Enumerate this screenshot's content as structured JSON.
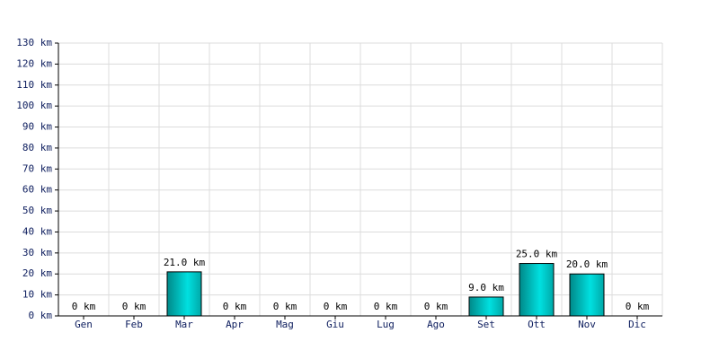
{
  "chart_data": {
    "type": "bar",
    "categories": [
      "Gen",
      "Feb",
      "Mar",
      "Apr",
      "Mag",
      "Giu",
      "Lug",
      "Ago",
      "Set",
      "Ott",
      "Nov",
      "Dic"
    ],
    "values": [
      0,
      0,
      21,
      0,
      0,
      0,
      0,
      0,
      9,
      25,
      20,
      0
    ],
    "value_labels": [
      "0 km",
      "0 km",
      "21.0 km",
      "0 km",
      "0 km",
      "0 km",
      "0 km",
      "0 km",
      "9.0 km",
      "25.0 km",
      "20.0 km",
      "0 km"
    ],
    "color": "#00e0e0",
    "ylim": [
      0,
      130
    ],
    "yticks": [
      {
        "value": 0,
        "label": "0 km"
      },
      {
        "value": 10,
        "label": "10 km"
      },
      {
        "value": 20,
        "label": "20 km"
      },
      {
        "value": 30,
        "label": "30 km"
      },
      {
        "value": 40,
        "label": "40 km"
      },
      {
        "value": 50,
        "label": "50 km"
      },
      {
        "value": 60,
        "label": "60 km"
      },
      {
        "value": 70,
        "label": "70 km"
      },
      {
        "value": 80,
        "label": "80 km"
      },
      {
        "value": 90,
        "label": "90 km"
      },
      {
        "value": 100,
        "label": "100 km"
      },
      {
        "value": 110,
        "label": "110 km"
      },
      {
        "value": 120,
        "label": "120 km"
      },
      {
        "value": 130,
        "label": "130 km"
      }
    ],
    "grid": true
  }
}
